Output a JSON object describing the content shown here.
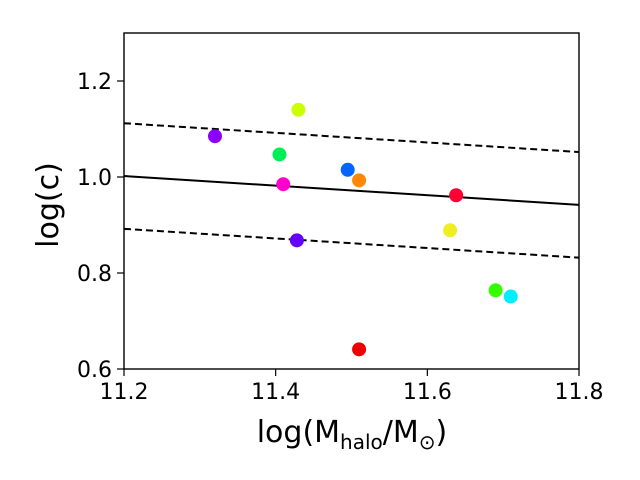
{
  "chart_data": {
    "type": "scatter",
    "title": "",
    "xlabel": "log(M",
    "xlabel_sub1": "halo",
    "xlabel_mid": "/M",
    "xlabel_sub2": "⊙",
    "xlabel_end": ")",
    "ylabel": "log(c)",
    "xlim": [
      11.2,
      11.8
    ],
    "ylim": [
      0.6,
      1.3
    ],
    "xticks": [
      11.2,
      11.4,
      11.6,
      11.8
    ],
    "xtick_labels": [
      "11.2",
      "11.4",
      "11.6",
      "11.8"
    ],
    "yticks": [
      0.6,
      0.8,
      1.0,
      1.2
    ],
    "ytick_labels": [
      "0.6",
      "0.8",
      "1.0",
      "1.2"
    ],
    "grid": false,
    "fit_line": {
      "x": [
        11.2,
        11.8
      ],
      "y": [
        1.002,
        0.942
      ],
      "color": "#000000",
      "style": "solid"
    },
    "band_lines": [
      {
        "x": [
          11.2,
          11.8
        ],
        "y": [
          1.112,
          1.052
        ],
        "color": "#000000",
        "style": "dashed"
      },
      {
        "x": [
          11.2,
          11.8
        ],
        "y": [
          0.892,
          0.832
        ],
        "color": "#000000",
        "style": "dashed"
      }
    ],
    "points": [
      {
        "x": 11.32,
        "y": 1.085,
        "color": "#8B00FF"
      },
      {
        "x": 11.43,
        "y": 1.14,
        "color": "#CCFF00"
      },
      {
        "x": 11.405,
        "y": 1.047,
        "color": "#00EE55"
      },
      {
        "x": 11.41,
        "y": 0.985,
        "color": "#FF00CC"
      },
      {
        "x": 11.428,
        "y": 0.868,
        "color": "#6600FF"
      },
      {
        "x": 11.495,
        "y": 1.015,
        "color": "#0066FF"
      },
      {
        "x": 11.51,
        "y": 0.993,
        "color": "#FF8800"
      },
      {
        "x": 11.51,
        "y": 0.641,
        "color": "#EE0000"
      },
      {
        "x": 11.638,
        "y": 0.962,
        "color": "#FF0033"
      },
      {
        "x": 11.63,
        "y": 0.889,
        "color": "#EEEE22"
      },
      {
        "x": 11.69,
        "y": 0.764,
        "color": "#33FF00"
      },
      {
        "x": 11.71,
        "y": 0.751,
        "color": "#00EEFF"
      }
    ]
  }
}
